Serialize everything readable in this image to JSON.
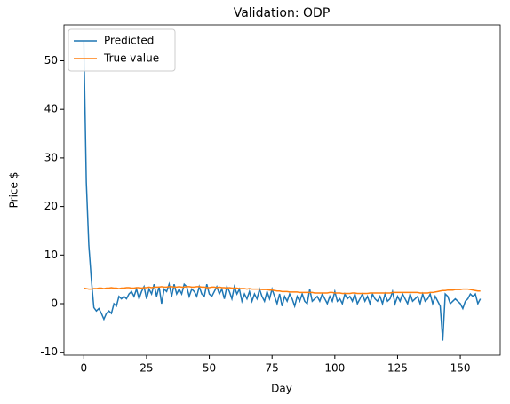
{
  "chart_data": {
    "type": "line",
    "title": "Validation: ODP",
    "xlabel": "Day",
    "ylabel": "Price $",
    "x": [
      0,
      1,
      2,
      3,
      4,
      5,
      6,
      7,
      8,
      9,
      10,
      11,
      12,
      13,
      14,
      15,
      16,
      17,
      18,
      19,
      20,
      21,
      22,
      23,
      24,
      25,
      26,
      27,
      28,
      29,
      30,
      31,
      32,
      33,
      34,
      35,
      36,
      37,
      38,
      39,
      40,
      41,
      42,
      43,
      44,
      45,
      46,
      47,
      48,
      49,
      50,
      51,
      52,
      53,
      54,
      55,
      56,
      57,
      58,
      59,
      60,
      61,
      62,
      63,
      64,
      65,
      66,
      67,
      68,
      69,
      70,
      71,
      72,
      73,
      74,
      75,
      76,
      77,
      78,
      79,
      80,
      81,
      82,
      83,
      84,
      85,
      86,
      87,
      88,
      89,
      90,
      91,
      92,
      93,
      94,
      95,
      96,
      97,
      98,
      99,
      100,
      101,
      102,
      103,
      104,
      105,
      106,
      107,
      108,
      109,
      110,
      111,
      112,
      113,
      114,
      115,
      116,
      117,
      118,
      119,
      120,
      121,
      122,
      123,
      124,
      125,
      126,
      127,
      128,
      129,
      130,
      131,
      132,
      133,
      134,
      135,
      136,
      137,
      138,
      139,
      140,
      141,
      142,
      143,
      144,
      145,
      146,
      147,
      148,
      149,
      150,
      151,
      152,
      153,
      154,
      155,
      156,
      157,
      158
    ],
    "series": [
      {
        "name": "Predicted",
        "color": "#1f77b4",
        "values": [
          54,
          25,
          12,
          5,
          -0.8,
          -1.5,
          -1,
          -2,
          -3.2,
          -2,
          -1.5,
          -2,
          0,
          -0.5,
          1.5,
          1,
          1.5,
          1,
          2,
          2.5,
          1.5,
          3,
          1,
          2.5,
          3.5,
          1,
          3,
          2,
          4,
          1.5,
          3.5,
          0,
          3,
          2.5,
          4,
          1.5,
          4,
          2,
          3,
          2,
          4,
          3.5,
          1.5,
          3,
          2.5,
          1.5,
          3.5,
          2,
          1.5,
          4,
          2,
          1.5,
          2.5,
          3.5,
          2,
          3,
          1,
          3.5,
          2.5,
          1,
          3.5,
          2,
          3,
          0.5,
          2,
          1,
          2.5,
          0.5,
          2,
          1,
          3,
          1.5,
          0.5,
          2.5,
          1,
          3,
          1.5,
          0,
          2,
          -0.5,
          1.5,
          0.5,
          2,
          1,
          -0.5,
          1.5,
          0.5,
          2,
          0.5,
          0,
          3,
          0.5,
          1,
          1.5,
          0.5,
          2,
          1,
          0,
          1.5,
          0.5,
          2.5,
          0.5,
          1,
          0,
          2,
          1,
          1.5,
          0.5,
          2,
          0,
          1,
          2,
          0.5,
          1.5,
          0,
          2,
          1,
          0.5,
          1.5,
          0,
          2,
          0.5,
          1,
          2.5,
          0,
          1.5,
          0.5,
          2,
          1,
          0,
          2,
          0.5,
          1,
          1.5,
          0,
          2,
          0.5,
          1,
          2,
          0,
          1.5,
          0.5,
          -0.5,
          -7.6,
          2,
          1.5,
          0,
          0.5,
          1,
          0.5,
          0,
          -1,
          0.5,
          1,
          2,
          1.5,
          2,
          0,
          1
        ]
      },
      {
        "name": "True value",
        "color": "#ff7f0e",
        "values": [
          3.2,
          3.1,
          3.0,
          3.0,
          3.1,
          3.1,
          3.2,
          3.2,
          3.1,
          3.2,
          3.2,
          3.3,
          3.2,
          3.2,
          3.1,
          3.2,
          3.2,
          3.3,
          3.3,
          3.2,
          3.2,
          3.3,
          3.3,
          3.2,
          3.3,
          3.3,
          3.4,
          3.3,
          3.4,
          3.4,
          3.4,
          3.5,
          3.4,
          3.4,
          3.5,
          3.5,
          3.4,
          3.4,
          3.5,
          3.4,
          3.4,
          3.5,
          3.5,
          3.4,
          3.4,
          3.5,
          3.5,
          3.4,
          3.4,
          3.3,
          3.3,
          3.4,
          3.4,
          3.3,
          3.4,
          3.3,
          3.3,
          3.2,
          3.3,
          3.2,
          3.2,
          3.2,
          3.1,
          3.1,
          3.1,
          3.0,
          3.1,
          3.0,
          3.0,
          3.0,
          3.0,
          2.9,
          2.9,
          2.9,
          2.8,
          2.8,
          2.7,
          2.6,
          2.6,
          2.5,
          2.5,
          2.5,
          2.4,
          2.4,
          2.4,
          2.4,
          2.3,
          2.3,
          2.3,
          2.3,
          2.3,
          2.3,
          2.2,
          2.2,
          2.2,
          2.2,
          2.2,
          2.2,
          2.3,
          2.3,
          2.2,
          2.2,
          2.2,
          2.1,
          2.1,
          2.1,
          2.1,
          2.2,
          2.2,
          2.1,
          2.1,
          2.1,
          2.1,
          2.1,
          2.2,
          2.2,
          2.2,
          2.2,
          2.2,
          2.2,
          2.2,
          2.2,
          2.2,
          2.3,
          2.3,
          2.3,
          2.3,
          2.3,
          2.3,
          2.3,
          2.3,
          2.3,
          2.3,
          2.3,
          2.2,
          2.2,
          2.2,
          2.2,
          2.3,
          2.3,
          2.4,
          2.5,
          2.6,
          2.7,
          2.7,
          2.8,
          2.8,
          2.8,
          2.9,
          2.9,
          2.9,
          3.0,
          3.0,
          3.0,
          2.9,
          2.8,
          2.7,
          2.6,
          2.6
        ]
      }
    ],
    "xlim": [
      -7.9,
      165.9
    ],
    "xticks": [
      0,
      25,
      50,
      75,
      100,
      125,
      150
    ],
    "ylim": [
      -10.6,
      57.4
    ],
    "yticks": [
      -10,
      0,
      10,
      20,
      30,
      40,
      50
    ],
    "legend": "upper left",
    "grid": false
  }
}
